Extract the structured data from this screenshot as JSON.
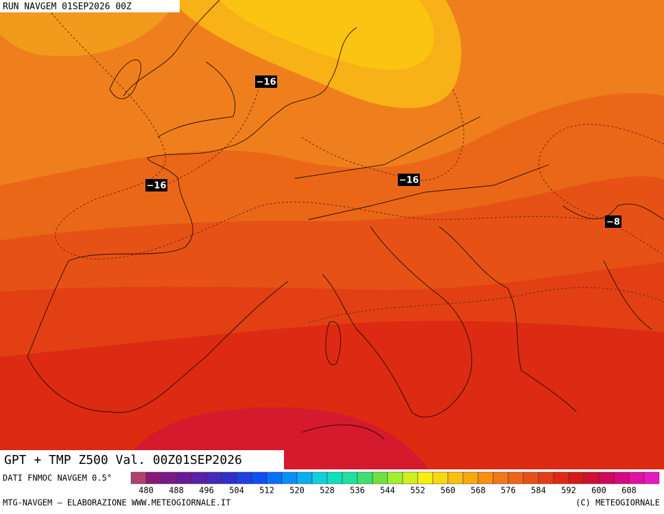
{
  "header": {
    "run": "RUN NAVGEM 01SEP2026 00Z"
  },
  "contour_labels": [
    "−16",
    "−16",
    "−16",
    "−8"
  ],
  "title": "GPT + TMP Z500 Val. 00Z01SEP2026",
  "legend": {
    "source": "DATI FNMOC NAVGEM 0.5°",
    "ticks": [
      480,
      488,
      496,
      504,
      512,
      520,
      528,
      536,
      544,
      552,
      560,
      568,
      576,
      584,
      592,
      600,
      608
    ]
  },
  "footer": {
    "left": "MTG-NAVGEM – ELABORAZIONE WWW.METEOGIORNALE.IT",
    "right": "(C) METEOGIORNALE"
  }
}
